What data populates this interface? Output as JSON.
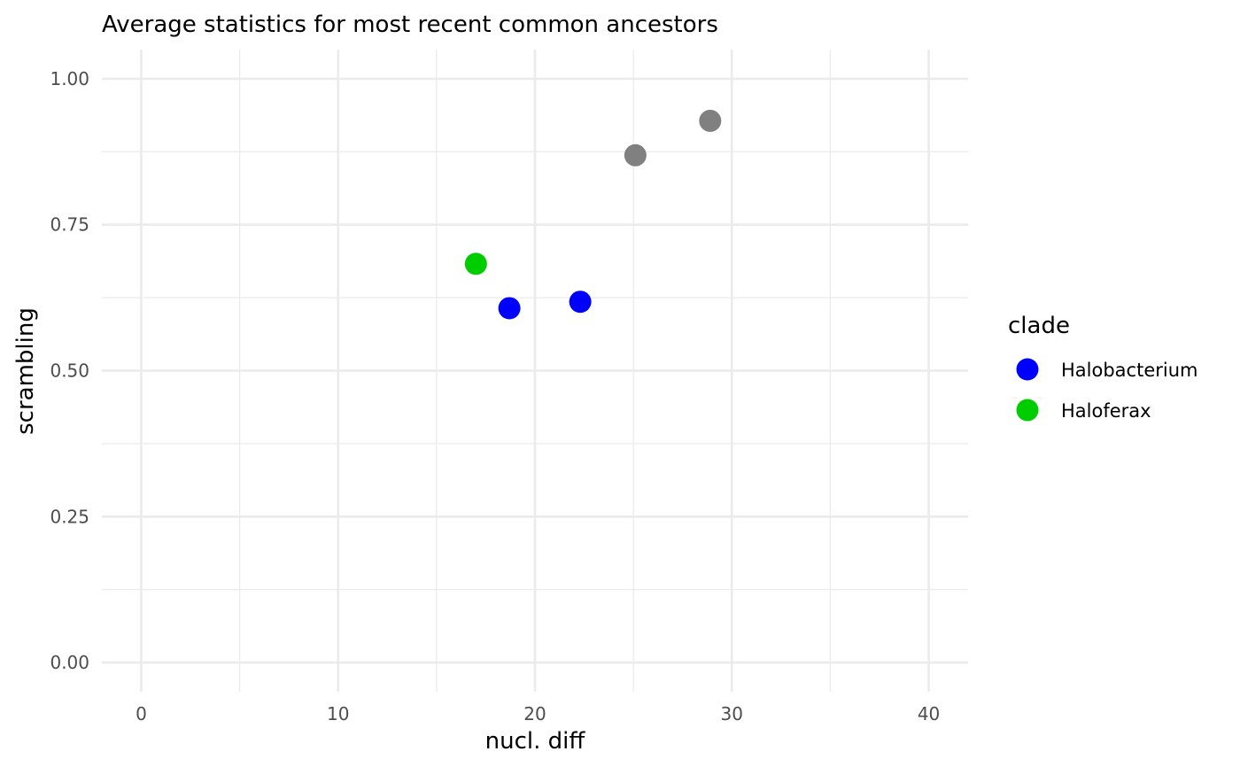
{
  "chart_data": {
    "type": "scatter",
    "title": "Average statistics for most recent common ancestors",
    "xlabel": "nucl. diff",
    "ylabel": "scrambling",
    "xlim": [
      -2,
      42
    ],
    "ylim": [
      -0.05,
      1.05
    ],
    "x_ticks": [
      0,
      10,
      20,
      30,
      40
    ],
    "x_tick_labels": [
      "0",
      "10",
      "20",
      "30",
      "40"
    ],
    "y_ticks": [
      0,
      0.25,
      0.5,
      0.75,
      1.0
    ],
    "y_tick_labels": [
      "0.00",
      "0.25",
      "0.50",
      "0.75",
      "1.00"
    ],
    "x_minor": [
      5,
      15,
      25,
      35
    ],
    "y_minor": [
      0.125,
      0.375,
      0.625,
      0.875
    ],
    "grid": true,
    "legend": {
      "title": "clade",
      "position": "right",
      "entries": [
        {
          "label": "Halobacterium",
          "color": "#0000ff"
        },
        {
          "label": "Haloferax",
          "color": "#00cd00"
        }
      ]
    },
    "points": [
      {
        "x": 17.0,
        "y": 0.683,
        "clade": "Haloferax",
        "color": "#00cd00"
      },
      {
        "x": 18.7,
        "y": 0.607,
        "clade": "Halobacterium",
        "color": "#0000ff"
      },
      {
        "x": 22.3,
        "y": 0.618,
        "clade": "Halobacterium",
        "color": "#0000ff"
      },
      {
        "x": 25.1,
        "y": 0.869,
        "clade": "",
        "color": "#808080"
      },
      {
        "x": 28.9,
        "y": 0.928,
        "clade": "",
        "color": "#808080"
      }
    ]
  }
}
